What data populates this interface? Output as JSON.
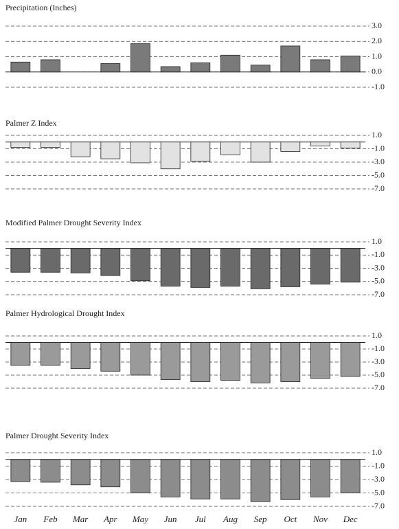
{
  "chart_data": [
    {
      "type": "bar",
      "title": "Precipitation (Inches)",
      "color": "#7a7a7a",
      "values": [
        0.65,
        0.8,
        0,
        0.55,
        1.85,
        0.35,
        0.6,
        1.1,
        0.45,
        1.7,
        0.8,
        1.05
      ],
      "ylim": [
        -1,
        3
      ],
      "yticks": [
        {
          "value": 3,
          "label": "3.0"
        },
        {
          "value": 2,
          "label": "2.0"
        },
        {
          "value": 1,
          "label": "1.0"
        },
        {
          "value": 0,
          "label": "0.0"
        },
        {
          "value": -1,
          "label": "-1.0"
        }
      ],
      "grid": true
    },
    {
      "type": "bar",
      "title": "Palmer Z Index",
      "color": "#e2e2e2",
      "values": [
        -0.8,
        -0.8,
        -2.2,
        -2.5,
        -3.1,
        -4.0,
        -2.9,
        -1.9,
        -3.0,
        -1.4,
        -0.6,
        -0.9
      ],
      "ylim": [
        -7,
        1
      ],
      "yticks": [
        {
          "value": 1,
          "label": "1.0"
        },
        {
          "value": -1,
          "label": "-1.0"
        },
        {
          "value": -3,
          "label": "-3.0"
        },
        {
          "value": -5,
          "label": "-5.0"
        },
        {
          "value": -7,
          "label": "-7.0"
        }
      ],
      "grid": true
    },
    {
      "type": "bar",
      "title": "Modified Palmer Drought Severity Index",
      "color": "#6a6a6a",
      "values": [
        -3.6,
        -3.6,
        -3.7,
        -4.1,
        -4.9,
        -5.7,
        -5.9,
        -5.7,
        -6.1,
        -5.8,
        -5.4,
        -5.1
      ],
      "ylim": [
        -7,
        1
      ],
      "yticks": [
        {
          "value": 1,
          "label": "1.0"
        },
        {
          "value": -1,
          "label": "-1.0"
        },
        {
          "value": -3,
          "label": "-3.0"
        },
        {
          "value": -5,
          "label": "-5.0"
        },
        {
          "value": -7,
          "label": "-7.0"
        }
      ],
      "grid": true
    },
    {
      "type": "bar",
      "title": "Palmer Hydrological Drought Index",
      "color": "#9a9a9a",
      "values": [
        -3.5,
        -3.5,
        -4.0,
        -4.4,
        -5.0,
        -5.7,
        -6.0,
        -5.8,
        -6.2,
        -6.0,
        -5.5,
        -5.2
      ],
      "ylim": [
        -7,
        1
      ],
      "yticks": [
        {
          "value": 1,
          "label": "1.0"
        },
        {
          "value": -1,
          "label": "-1.0"
        },
        {
          "value": -3,
          "label": "-3.0"
        },
        {
          "value": -5,
          "label": "-5.0"
        },
        {
          "value": -7,
          "label": "-7.0"
        }
      ],
      "grid": true
    },
    {
      "type": "bar",
      "title": "Palmer Drought Severity Index",
      "color": "#8c8c8c",
      "categories": [
        "Jan",
        "Feb",
        "Mar",
        "Apr",
        "May",
        "Jun",
        "Jul",
        "Aug",
        "Sep",
        "Oct",
        "Nov",
        "Dec"
      ],
      "values": [
        -3.3,
        -3.4,
        -3.8,
        -4.1,
        -5.0,
        -5.6,
        -5.9,
        -5.9,
        -6.3,
        -6.0,
        -5.6,
        -5.0
      ],
      "ylim": [
        -7,
        1
      ],
      "yticks": [
        {
          "value": 1,
          "label": "1.0"
        },
        {
          "value": -1,
          "label": "-1.0"
        },
        {
          "value": -3,
          "label": "-3.0"
        },
        {
          "value": -5,
          "label": "-5.0"
        },
        {
          "value": -7,
          "label": "-7.0"
        }
      ],
      "grid": true
    }
  ]
}
